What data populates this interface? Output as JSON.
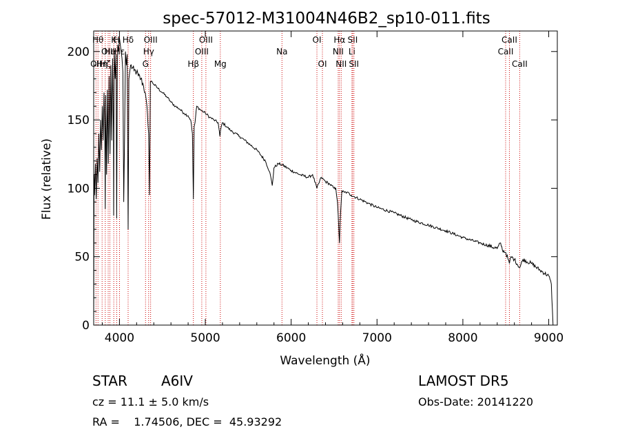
{
  "chart_data": {
    "type": "line",
    "title": "spec-57012-M31004N46B2_sp10-011.fits",
    "xlabel": "Wavelength (Å)",
    "ylabel": "Flux (relative)",
    "xlim": [
      3700,
      9100
    ],
    "ylim": [
      0,
      215
    ],
    "x_ticks": [
      4000,
      5000,
      6000,
      7000,
      8000,
      9000
    ],
    "y_ticks": [
      0,
      50,
      100,
      150,
      200
    ],
    "grid": false,
    "colors": {
      "spectrum": "#000000",
      "line_markers": "#cc0000"
    },
    "series": [
      {
        "x": [
          3700,
          3705,
          3710,
          3720,
          3730,
          3740,
          3750,
          3760,
          3770,
          3780,
          3790,
          3800,
          3810,
          3820,
          3830,
          3835,
          3840,
          3850,
          3860,
          3870,
          3880,
          3890,
          3900,
          3910,
          3920,
          3930,
          3933,
          3936,
          3940,
          3950,
          3960,
          3968,
          3975,
          3980,
          3990,
          4000,
          4010,
          4020,
          4030,
          4040,
          4050,
          4060,
          4070,
          4080,
          4090,
          4101,
          4110,
          4120,
          4130,
          4150,
          4170,
          4200,
          4220,
          4250,
          4280,
          4300,
          4320,
          4340,
          4350,
          4360,
          4380,
          4400,
          4450,
          4500,
          4550,
          4600,
          4650,
          4700,
          4750,
          4800,
          4830,
          4850,
          4861,
          4870,
          4880,
          4900,
          4950,
          5000,
          5050,
          5100,
          5150,
          5170,
          5185,
          5200,
          5250,
          5300,
          5400,
          5500,
          5600,
          5700,
          5750,
          5780,
          5800,
          5850,
          5900,
          6000,
          6100,
          6200,
          6250,
          6300,
          6350,
          6400,
          6450,
          6500,
          6520,
          6540,
          6555,
          6563,
          6570,
          6590,
          6620,
          6650,
          6700,
          6800,
          6900,
          7000,
          7200,
          7400,
          7600,
          7800,
          8000,
          8200,
          8400,
          8440,
          8460,
          8500,
          8542,
          8560,
          8600,
          8662,
          8700,
          8800,
          8900,
          9000,
          9030,
          9050
        ],
        "y": [
          0,
          110,
          95,
          118,
          92,
          122,
          104,
          140,
          112,
          150,
          128,
          160,
          135,
          170,
          140,
          85,
          168,
          110,
          172,
          118,
          182,
          125,
          190,
          135,
          195,
          140,
          80,
          150,
          200,
          180,
          198,
          78,
          185,
          205,
          200,
          210,
          205,
          200,
          195,
          185,
          90,
          140,
          200,
          190,
          198,
          70,
          180,
          185,
          190,
          188,
          186,
          185,
          182,
          180,
          175,
          170,
          160,
          140,
          95,
          178,
          178,
          176,
          173,
          170,
          167,
          163,
          160,
          158,
          155,
          153,
          150,
          140,
          92,
          145,
          148,
          160,
          157,
          155,
          152,
          150,
          148,
          138,
          145,
          148,
          145,
          142,
          138,
          133,
          128,
          120,
          112,
          102,
          115,
          118,
          117,
          113,
          110,
          108,
          110,
          100,
          108,
          105,
          103,
          100,
          100,
          90,
          70,
          60,
          75,
          98,
          97,
          97,
          95,
          92,
          89,
          86,
          82,
          77,
          73,
          69,
          64,
          60,
          56,
          60,
          55,
          53,
          45,
          50,
          48,
          42,
          48,
          45,
          40,
          36,
          30,
          0
        ]
      }
    ],
    "line_markers": [
      {
        "x": 3727,
        "label": "OII",
        "row": 3
      },
      {
        "x": 3750,
        "label": "Hθ",
        "row": 1
      },
      {
        "x": 3798,
        "label": "Hη",
        "row": 3
      },
      {
        "x": 3835,
        "label": "Hζ",
        "row": 3
      },
      {
        "x": 3869,
        "label": "OIII",
        "row": 2
      },
      {
        "x": 3889,
        "label": "He",
        "row": 2
      },
      {
        "x": 3934,
        "label": "K",
        "row": 1
      },
      {
        "x": 3968,
        "label": "H",
        "row": 1
      },
      {
        "x": 4001,
        "label": "Hε",
        "row": 2
      },
      {
        "x": 4101,
        "label": "Hδ",
        "row": 1
      },
      {
        "x": 4304,
        "label": "G",
        "row": 3
      },
      {
        "x": 4340,
        "label": "Hγ",
        "row": 2
      },
      {
        "x": 4363,
        "label": "OIII",
        "row": 1
      },
      {
        "x": 4861,
        "label": "Hβ",
        "row": 3
      },
      {
        "x": 4959,
        "label": "OIII",
        "row": 2
      },
      {
        "x": 5007,
        "label": "OIII",
        "row": 1
      },
      {
        "x": 5175,
        "label": "Mg",
        "row": 3
      },
      {
        "x": 5893,
        "label": "Na",
        "row": 2
      },
      {
        "x": 6300,
        "label": "OI",
        "row": 1
      },
      {
        "x": 6364,
        "label": "OI",
        "row": 3
      },
      {
        "x": 6548,
        "label": "NII",
        "row": 2
      },
      {
        "x": 6563,
        "label": "Hα",
        "row": 1
      },
      {
        "x": 6583,
        "label": "NII",
        "row": 3
      },
      {
        "x": 6708,
        "label": "Li",
        "row": 2
      },
      {
        "x": 6716,
        "label": "SII",
        "row": 1
      },
      {
        "x": 6731,
        "label": "SII",
        "row": 3
      },
      {
        "x": 8498,
        "label": "CaII",
        "row": 2
      },
      {
        "x": 8542,
        "label": "CaII",
        "row": 1
      },
      {
        "x": 8662,
        "label": "CaII",
        "row": 3
      }
    ]
  },
  "info": {
    "object_class": "STAR",
    "subclass": "A6IV",
    "survey": "LAMOST DR5",
    "redshift": "cz = 11.1 ± 5.0 km/s",
    "obs_date": "Obs-Date: 20141220",
    "coords": "RA =    1.74506, DEC =  45.93292"
  }
}
